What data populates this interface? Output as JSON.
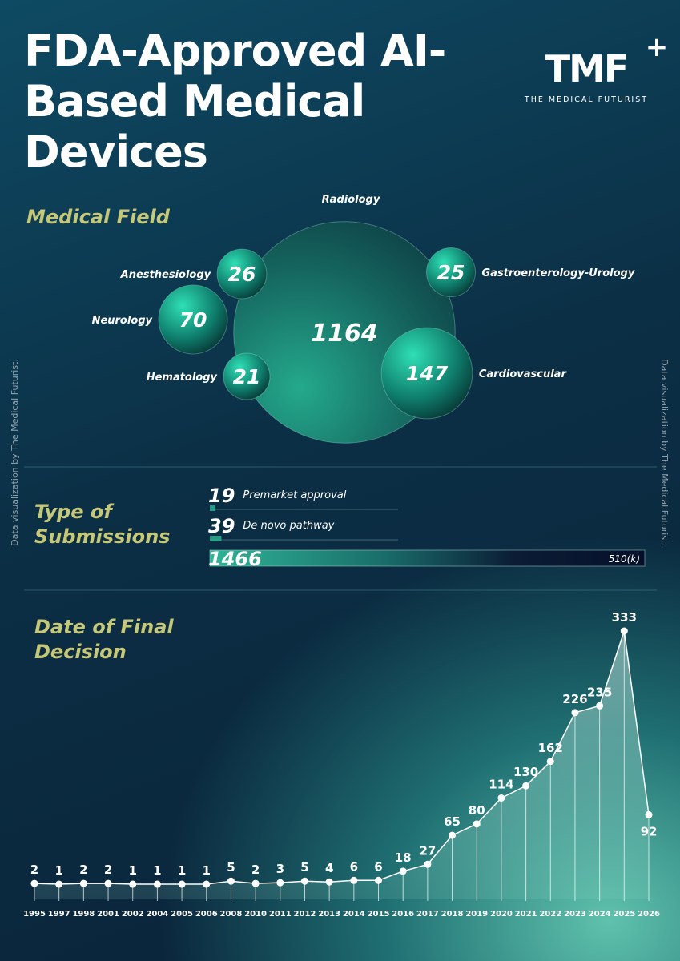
{
  "header": {
    "title": "FDA-Approved AI-Based Medical Devices",
    "logo": "TMF",
    "logo_mark": "+",
    "logo_subtitle": "THE MEDICAL FUTURIST"
  },
  "credit": "Data visualization by The Medical Futurist.",
  "chart_data": [
    {
      "type": "bubble",
      "title": "Medical Field",
      "categories": [
        "Radiology",
        "Cardiovascular",
        "Neurology",
        "Anesthesiology",
        "Gastroenterology-Urology",
        "Hematology"
      ],
      "values": [
        1164,
        147,
        70,
        26,
        25,
        21
      ]
    },
    {
      "type": "bar",
      "title": "Type of Submissions",
      "categories": [
        "Premarket approval",
        "De novo pathway",
        "510(k)"
      ],
      "values": [
        19,
        39,
        1466
      ]
    },
    {
      "type": "line",
      "title": "Date of Final Decision",
      "categories": [
        "1995",
        "1997",
        "1998",
        "2001",
        "2002",
        "2004",
        "2005",
        "2006",
        "2008",
        "2010",
        "2011",
        "2012",
        "2013",
        "2014",
        "2015",
        "2016",
        "2017",
        "2018",
        "2019",
        "2020",
        "2021",
        "2022",
        "2023",
        "2024",
        "2025",
        "2026"
      ],
      "values": [
        2,
        1,
        2,
        2,
        1,
        1,
        1,
        1,
        5,
        2,
        3,
        5,
        4,
        6,
        6,
        18,
        27,
        65,
        80,
        114,
        130,
        162,
        226,
        235,
        333,
        92
      ]
    }
  ]
}
